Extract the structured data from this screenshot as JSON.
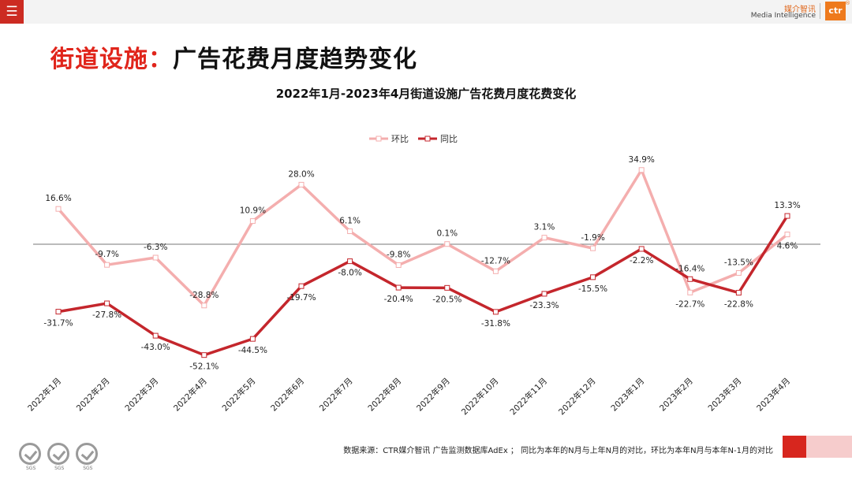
{
  "header": {
    "menu_icon": "hamburger-menu-icon",
    "logo_cn": "媒介智讯",
    "logo_en": "Media Intelligence",
    "logo_mark": "ctr",
    "logo_dot": "®"
  },
  "page_title": {
    "prefix": "街道设施：",
    "main": "广告花费月度趋势变化"
  },
  "chart_data": {
    "type": "line",
    "title": "2022年1月-2023年4月街道设施广告花费月度花费变化",
    "categories": [
      "2022年1月",
      "2022年2月",
      "2022年3月",
      "2022年4月",
      "2022年5月",
      "2022年6月",
      "2022年7月",
      "2022年8月",
      "2022年9月",
      "2022年10月",
      "2022年11月",
      "2022年12月",
      "2023年1月",
      "2023年2月",
      "2023年3月",
      "2023年4月"
    ],
    "series": [
      {
        "name": "环比",
        "color": "#f4aeae",
        "values": [
          16.6,
          -9.7,
          -6.3,
          -28.8,
          10.9,
          28.0,
          6.1,
          -9.8,
          0.1,
          -12.7,
          3.1,
          -1.9,
          34.9,
          -22.7,
          -13.5,
          4.6
        ],
        "labels": [
          "16.6%",
          "-9.7%",
          "-6.3%",
          "-28.8%",
          "10.9%",
          "28.0%",
          "6.1%",
          "-9.8%",
          "0.1%",
          "-12.7%",
          "3.1%",
          "-1.9%",
          "34.9%",
          "-22.7%",
          "-13.5%",
          "4.6%"
        ]
      },
      {
        "name": "同比",
        "color": "#c4262c",
        "values": [
          -31.7,
          -27.8,
          -43.0,
          -52.1,
          -44.5,
          -19.7,
          -8.0,
          -20.4,
          -20.5,
          -31.8,
          -23.3,
          -15.5,
          -2.2,
          -16.4,
          -22.8,
          13.3
        ],
        "labels": [
          "-31.7%",
          "-27.8%",
          "-43.0%",
          "-52.1%",
          "-44.5%",
          "-19.7%",
          "-8.0%",
          "-20.4%",
          "-20.5%",
          "-31.8%",
          "-23.3%",
          "-15.5%",
          "-2.2%",
          "-16.4%",
          "-22.8%",
          "13.3%"
        ]
      }
    ],
    "ylim": [
      -60,
      40
    ],
    "zero_line": true,
    "grid": false,
    "legend_position": "top-center"
  },
  "footnote": "数据来源：CTR媒介智讯 广告监测数据库AdEx ； 同比为本年的N月与上年N月的对比，环比为本年N月与本年N-1月的对比",
  "badges": [
    "SGS",
    "SGS",
    "SGS"
  ]
}
